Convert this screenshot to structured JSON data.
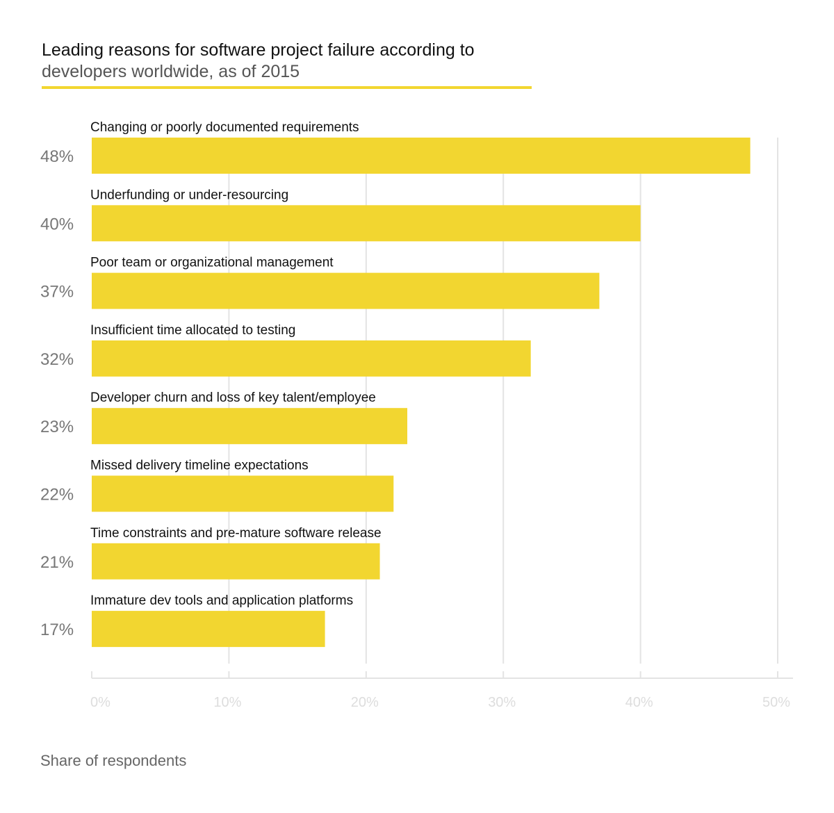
{
  "title": {
    "line1": "Leading reasons for software project failure according to",
    "line2": "developers worldwide, as of 2015"
  },
  "footer": {
    "xlabel": "Share of respondents"
  },
  "colors": {
    "bar": "#f2d630",
    "grid": "#e3e3e3",
    "category_text": "#111111",
    "value_text": "#777777",
    "tick_text": "#dddddd",
    "title_rule": "#f2d630"
  },
  "chart_data": {
    "type": "bar",
    "orientation": "horizontal",
    "categories": [
      "Changing or poorly documented requirements",
      "Underfunding or under-resourcing",
      "Poor team or organizational management",
      "Insufficient time allocated to testing",
      "Developer churn and loss of key talent/employee",
      "Missed delivery timeline expectations",
      "Time constraints and pre-mature software release",
      "Immature dev tools and application platforms"
    ],
    "values": [
      48,
      40,
      37,
      32,
      23,
      22,
      21,
      17
    ],
    "value_labels": [
      "48%",
      "40%",
      "37%",
      "32%",
      "23%",
      "22%",
      "21%",
      "17%"
    ],
    "title": "Leading reasons for software project failure according to developers worldwide, as of 2015",
    "xlabel": "Share of respondents",
    "ylabel": "",
    "xlim": [
      0,
      50
    ],
    "xticks": [
      0,
      10,
      20,
      30,
      40,
      50
    ],
    "xtick_labels": [
      "0%",
      "10%",
      "20%",
      "30%",
      "40%",
      "50%"
    ],
    "grid": true,
    "legend": "none"
  }
}
